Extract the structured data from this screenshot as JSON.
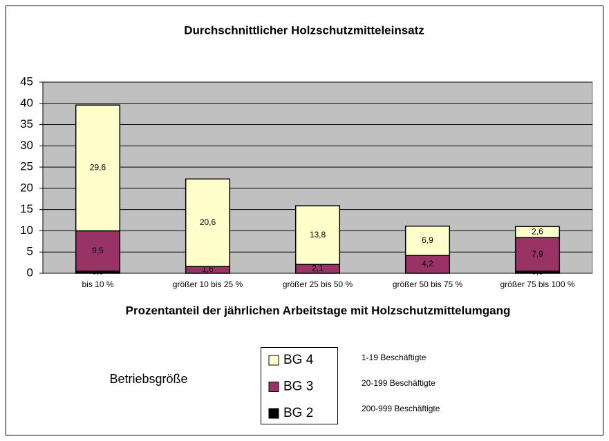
{
  "chart_data": {
    "type": "stacked_bar",
    "title": "Durchschnittlicher Holzschutzmitteleinsatz",
    "x_label": "Prozentanteil der jährlichen Arbeitstage mit Holzschutzmittelumgang",
    "categories": [
      "bis 10 %",
      "größer 10 bis 25 %",
      "größer 25 bis 50 %",
      "größer 50 bis 75 %",
      "größer 75 bis 100 %"
    ],
    "series": [
      {
        "name": "BG 2",
        "color": "#000000",
        "values": [
          0.5,
          null,
          null,
          null,
          0.5
        ],
        "value_labels": [
          "0,5",
          null,
          null,
          null,
          "0,5"
        ]
      },
      {
        "name": "BG 3",
        "color": "#993366",
        "values": [
          9.5,
          1.6,
          2.1,
          4.2,
          7.9
        ],
        "value_labels": [
          "9,5",
          "1,6",
          "2,1",
          "4,2",
          "7,9"
        ]
      },
      {
        "name": "BG 4",
        "color": "#FFFFCC",
        "values": [
          29.6,
          20.6,
          13.8,
          6.9,
          2.6
        ],
        "value_labels": [
          "29,6",
          "20,6",
          "13,8",
          "6,9",
          "2,6"
        ]
      }
    ],
    "ylim": [
      0,
      45
    ],
    "yticks": [
      0,
      5,
      10,
      15,
      20,
      25,
      30,
      35,
      40,
      45
    ],
    "grid": true,
    "legend_title": "Betriebsgröße",
    "legend_notes": [
      "1-19 Beschäftigte",
      "20-199 Beschäftigte",
      "200-999 Beschäftigte"
    ]
  }
}
